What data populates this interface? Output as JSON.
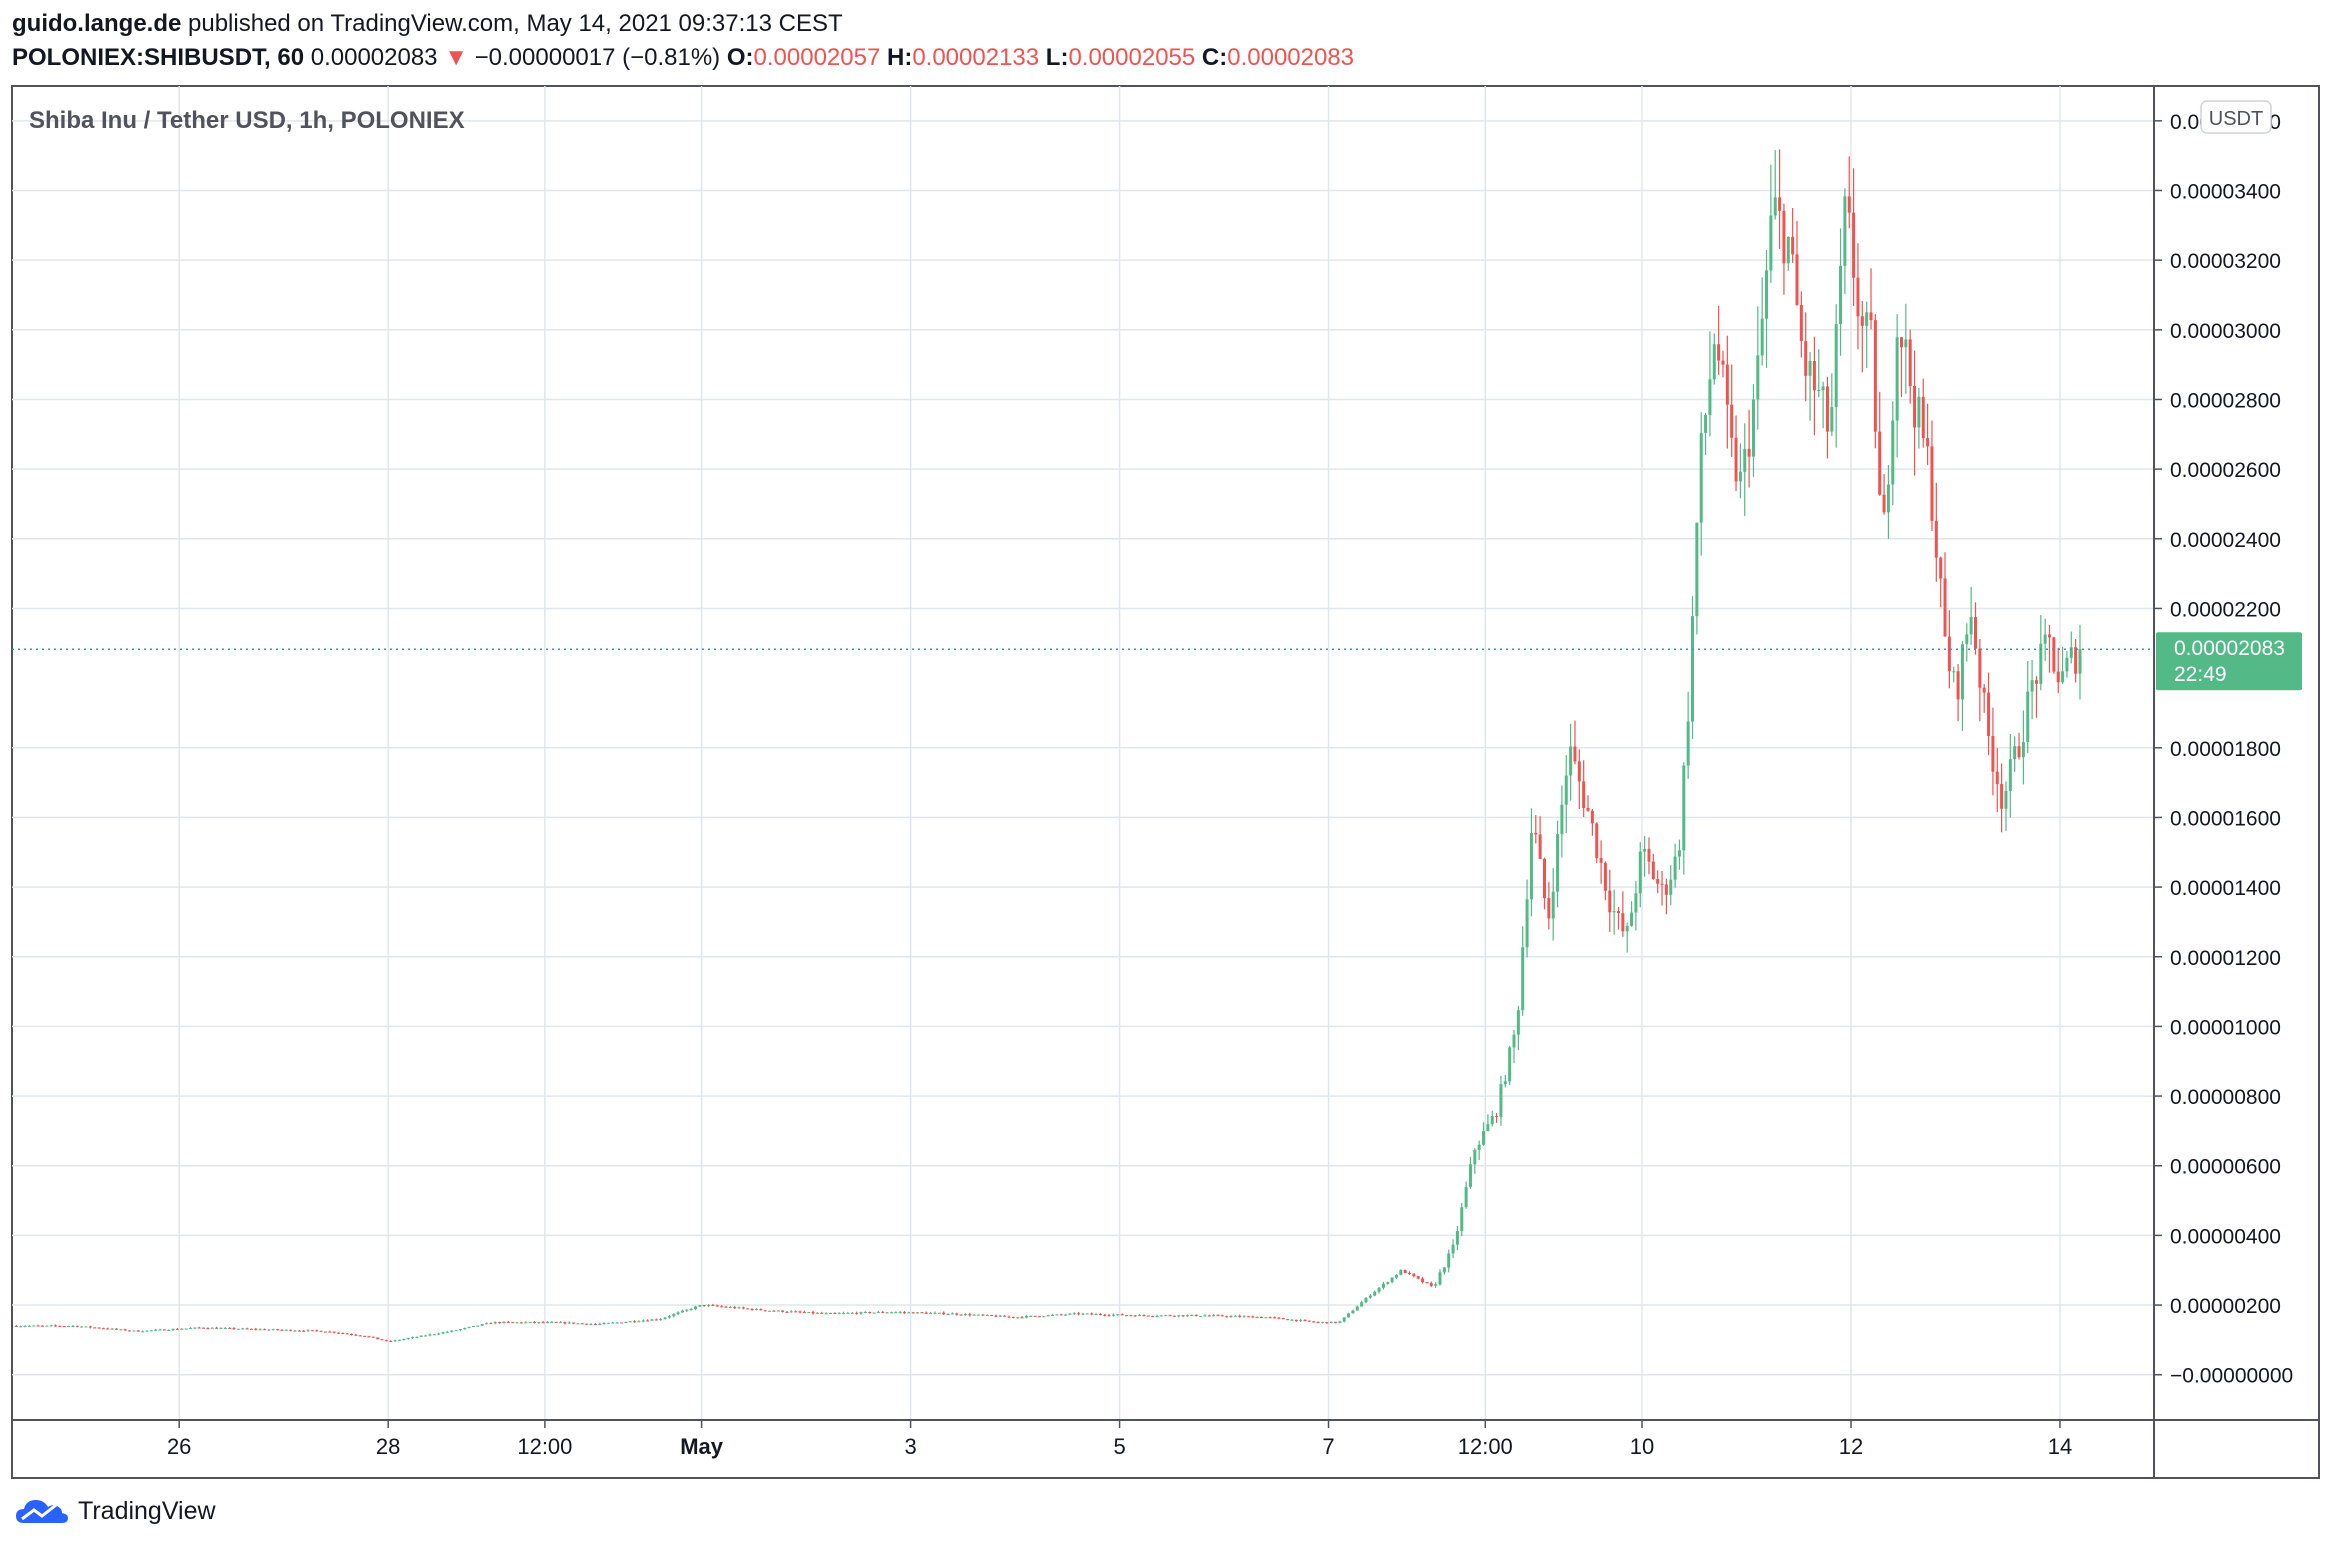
{
  "header": {
    "author": "guido.lange.de",
    "published": "published on TradingView.com, May 14, 2021 09:37:13 CEST",
    "symbol": "POLONIEX:SHIBUSDT, 60",
    "last": "0.00002083",
    "arrow": "▼",
    "change": "−0.00000017 (−0.81%)",
    "o_label": "O:",
    "o_value": "0.00002057",
    "h_label": "H:",
    "h_value": "0.00002133",
    "l_label": "L:",
    "l_value": "0.00002055",
    "c_label": "C:",
    "c_value": "0.00002083"
  },
  "footer": {
    "brand": "TradingView",
    "logo_icon": "tradingview-cloud-icon"
  },
  "chart_data": {
    "type": "candlestick",
    "title": "Shiba Inu / Tether USD, 1h, POLONIEX",
    "currency_badge": "USDT",
    "last_price_label": "0.00002083",
    "countdown_label": "22:49",
    "colors": {
      "up": "#26a69a",
      "up_candle": "#53b987",
      "down": "#ef5350",
      "grid": "#e0e7ec",
      "badge": "#53b987"
    },
    "x_axis": {
      "unit": "days since Apr 25, 2021 00:00",
      "range": [
        24.4,
        44.9
      ],
      "ticks": [
        {
          "x": 26,
          "label": "26"
        },
        {
          "x": 28,
          "label": "28"
        },
        {
          "x": 29.5,
          "label": "12:00"
        },
        {
          "x": 31,
          "label": "May",
          "bold": true
        },
        {
          "x": 33,
          "label": "3"
        },
        {
          "x": 35,
          "label": "5"
        },
        {
          "x": 37,
          "label": "7"
        },
        {
          "x": 38.5,
          "label": "12:00"
        },
        {
          "x": 40,
          "label": "10"
        },
        {
          "x": 42,
          "label": "12"
        },
        {
          "x": 44,
          "label": "14"
        }
      ]
    },
    "y_axis": {
      "range": [
        -1.3e-06,
        3.7e-05
      ],
      "ticks": [
        {
          "v": 0.0,
          "label": "−0.00000000"
        },
        {
          "v": 2e-06,
          "label": "0.00000200"
        },
        {
          "v": 4e-06,
          "label": "0.00000400"
        },
        {
          "v": 6e-06,
          "label": "0.00000600"
        },
        {
          "v": 8e-06,
          "label": "0.00000800"
        },
        {
          "v": 1e-05,
          "label": "0.00001000"
        },
        {
          "v": 1.2e-05,
          "label": "0.00001200"
        },
        {
          "v": 1.4e-05,
          "label": "0.00001400"
        },
        {
          "v": 1.6e-05,
          "label": "0.00001600"
        },
        {
          "v": 1.8e-05,
          "label": "0.00001800"
        },
        {
          "v": 2.2e-05,
          "label": "0.00002200"
        },
        {
          "v": 2.4e-05,
          "label": "0.00002400"
        },
        {
          "v": 2.6e-05,
          "label": "0.00002600"
        },
        {
          "v": 2.8e-05,
          "label": "0.00002800"
        },
        {
          "v": 3e-05,
          "label": "0.00003000"
        },
        {
          "v": 3.2e-05,
          "label": "0.00003200"
        },
        {
          "v": 3.4e-05,
          "label": "0.00003400"
        },
        {
          "v": 3.6e-05,
          "label": "0.00003600"
        }
      ]
    },
    "last_price": 2.083e-05,
    "closes": [
      [
        24.4,
        1.4e-06
      ],
      [
        25.0,
        1.4e-06
      ],
      [
        25.6,
        1.25e-06
      ],
      [
        26.2,
        1.35e-06
      ],
      [
        26.8,
        1.3e-06
      ],
      [
        27.4,
        1.25e-06
      ],
      [
        27.8,
        1.1e-06
      ],
      [
        28.0,
        9.5e-07
      ],
      [
        28.2,
        1.05e-06
      ],
      [
        28.6,
        1.25e-06
      ],
      [
        29.0,
        1.5e-06
      ],
      [
        29.6,
        1.5e-06
      ],
      [
        30.0,
        1.45e-06
      ],
      [
        30.6,
        1.6e-06
      ],
      [
        31.0,
        2e-06
      ],
      [
        31.6,
        1.85e-06
      ],
      [
        32.2,
        1.75e-06
      ],
      [
        32.8,
        1.8e-06
      ],
      [
        33.4,
        1.75e-06
      ],
      [
        34.0,
        1.65e-06
      ],
      [
        34.6,
        1.75e-06
      ],
      [
        35.2,
        1.7e-06
      ],
      [
        35.8,
        1.7e-06
      ],
      [
        36.4,
        1.65e-06
      ],
      [
        36.9,
        1.5e-06
      ],
      [
        37.1,
        1.5e-06
      ],
      [
        37.4,
        2.3e-06
      ],
      [
        37.7,
        3e-06
      ],
      [
        38.0,
        2.5e-06
      ],
      [
        38.2,
        3.7e-06
      ],
      [
        38.4,
        6.5e-06
      ],
      [
        38.6,
        7.5e-06
      ],
      [
        38.8,
        1e-05
      ],
      [
        38.95,
        1.6e-05
      ],
      [
        39.1,
        1.3e-05
      ],
      [
        39.3,
        1.8e-05
      ],
      [
        39.5,
        1.6e-05
      ],
      [
        39.7,
        1.35e-05
      ],
      [
        39.85,
        1.25e-05
      ],
      [
        40.0,
        1.5e-05
      ],
      [
        40.2,
        1.38e-05
      ],
      [
        40.35,
        1.5e-05
      ],
      [
        40.45,
        1.95e-05
      ],
      [
        40.55,
        2.6e-05
      ],
      [
        40.7,
        3e-05
      ],
      [
        40.85,
        2.65e-05
      ],
      [
        40.95,
        2.55e-05
      ],
      [
        41.1,
        2.85e-05
      ],
      [
        41.25,
        3.35e-05
      ],
      [
        41.4,
        3.25e-05
      ],
      [
        41.55,
        2.9e-05
      ],
      [
        41.7,
        2.8e-05
      ],
      [
        41.8,
        2.7e-05
      ],
      [
        41.95,
        3.35e-05
      ],
      [
        42.1,
        3e-05
      ],
      [
        42.2,
        2.95e-05
      ],
      [
        42.3,
        2.35e-05
      ],
      [
        42.45,
        3.05e-05
      ],
      [
        42.6,
        2.8e-05
      ],
      [
        42.75,
        2.6e-05
      ],
      [
        42.9,
        2.1e-05
      ],
      [
        43.0,
        1.95e-05
      ],
      [
        43.15,
        2.2e-05
      ],
      [
        43.3,
        1.85e-05
      ],
      [
        43.45,
        1.65e-05
      ],
      [
        43.6,
        1.8e-05
      ],
      [
        43.75,
        2e-05
      ],
      [
        43.9,
        2.1e-05
      ],
      [
        44.0,
        1.98e-05
      ],
      [
        44.1,
        2.05e-05
      ],
      [
        44.2,
        2.083e-05
      ]
    ]
  }
}
